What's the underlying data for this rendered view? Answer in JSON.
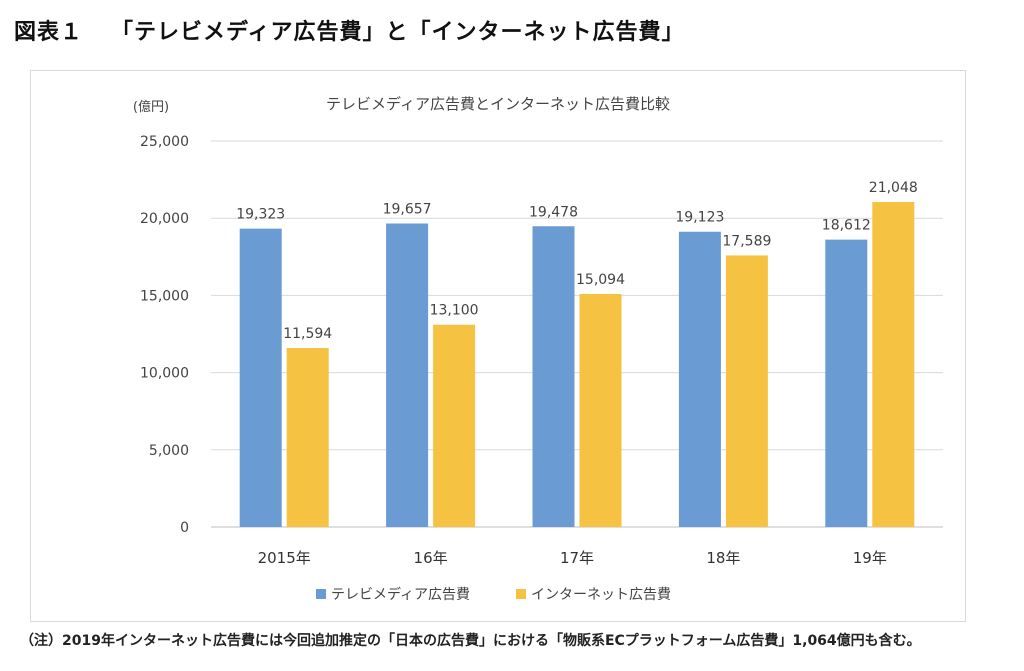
{
  "figure": {
    "label": "図表１",
    "heading": "「テレビメディア広告費」と「インターネット広告費」"
  },
  "chart_data": {
    "type": "bar",
    "title": "テレビメディア広告費とインターネット広告費比較",
    "unit_label": "(億円)",
    "categories": [
      "2015年",
      "16年",
      "17年",
      "18年",
      "19年"
    ],
    "series": [
      {
        "name": "テレビメディア広告費",
        "color": "#6a9bd3",
        "values": [
          19323,
          19657,
          19478,
          19123,
          18612
        ],
        "labels": [
          "19,323",
          "19,657",
          "19,478",
          "19,123",
          "18,612"
        ]
      },
      {
        "name": "インターネット広告費",
        "color": "#f5c242",
        "values": [
          11594,
          13100,
          15094,
          17589,
          21048
        ],
        "labels": [
          "11,594",
          "13,100",
          "15,094",
          "17,589",
          "21,048"
        ]
      }
    ],
    "ylim": [
      0,
      25000
    ],
    "yticks": [
      0,
      5000,
      10000,
      15000,
      20000,
      25000
    ],
    "ytick_labels": [
      "0",
      "5,000",
      "10,000",
      "15,000",
      "20,000",
      "25,000"
    ],
    "grid": true,
    "legend": "bottom-center"
  },
  "footnote": "（注）2019年インターネット広告費には今回追加推定の「日本の広告費」における「物販系ECプラットフォーム広告費」1,064億円も含む。"
}
